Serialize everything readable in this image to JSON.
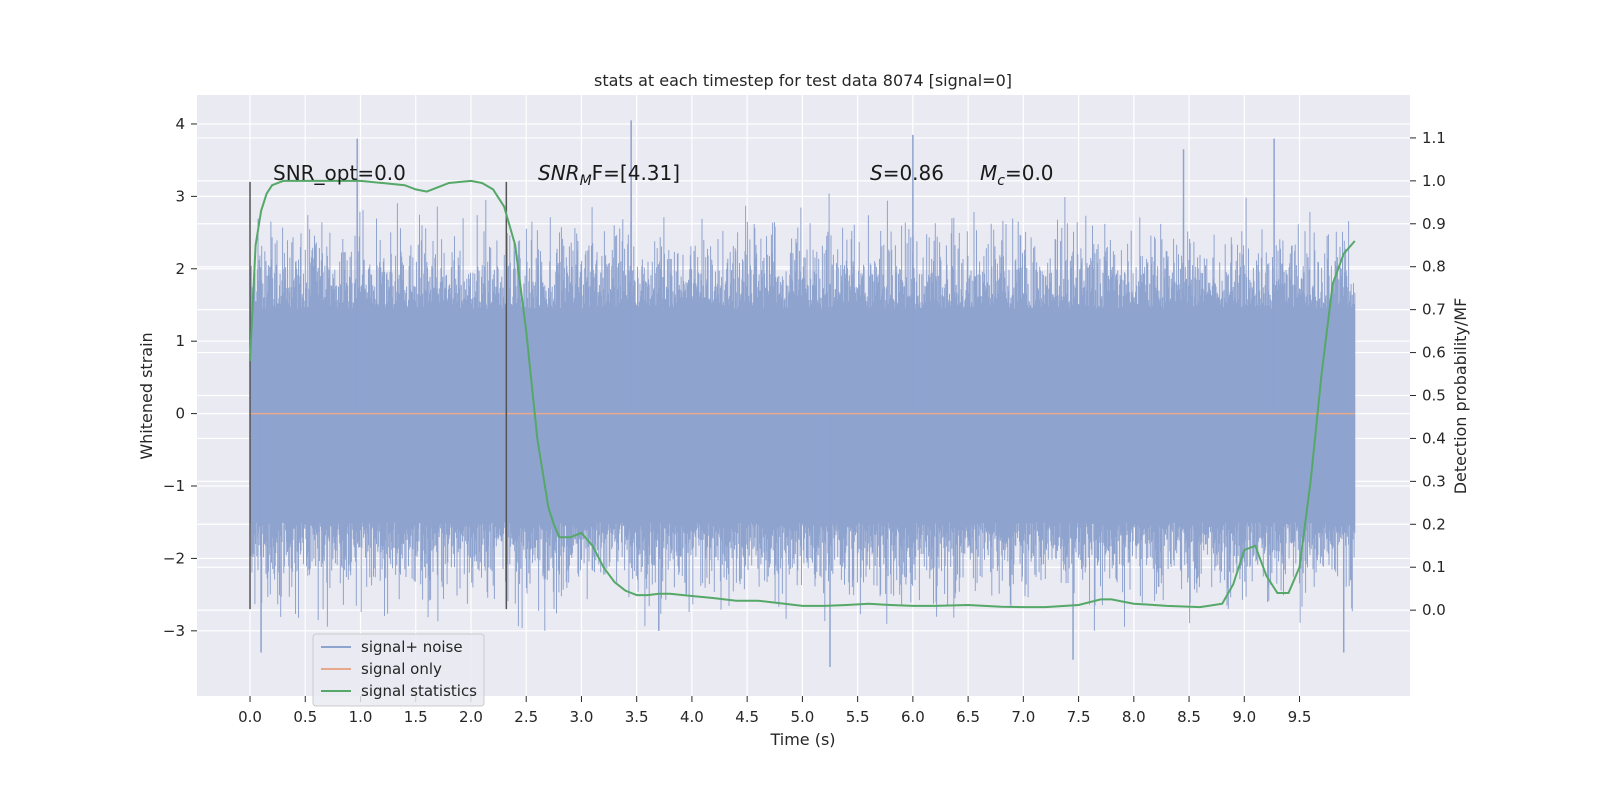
{
  "chart_data": {
    "type": "line",
    "title": "stats at each timestep for test data 8074 [signal=0]",
    "xlabel": "Time (s)",
    "ylabel": "Whitened strain",
    "y2label": "Detection probability/MF",
    "xlim": [
      -0.48,
      10.5
    ],
    "ylim": [
      -3.9,
      4.4
    ],
    "y2lim": [
      -0.2,
      1.2
    ],
    "xticks": [
      "0.0",
      "0.5",
      "1.0",
      "1.5",
      "2.0",
      "2.5",
      "3.0",
      "3.5",
      "4.0",
      "4.5",
      "5.0",
      "5.5",
      "6.0",
      "6.5",
      "7.0",
      "7.5",
      "8.0",
      "8.5",
      "9.0",
      "9.5"
    ],
    "xtick_values": [
      0.0,
      0.5,
      1.0,
      1.5,
      2.0,
      2.5,
      3.0,
      3.5,
      4.0,
      4.5,
      5.0,
      5.5,
      6.0,
      6.5,
      7.0,
      7.5,
      8.0,
      8.5,
      9.0,
      9.5
    ],
    "yticks": [
      "4",
      "3",
      "2",
      "1",
      "0",
      "−1",
      "−2",
      "−3"
    ],
    "ytick_values": [
      4,
      3,
      2,
      1,
      0,
      -1,
      -2,
      -3
    ],
    "y2ticks": [
      "1.1",
      "1.0",
      "0.9",
      "0.8",
      "0.7",
      "0.6",
      "0.5",
      "0.4",
      "0.3",
      "0.2",
      "0.1",
      "0.0"
    ],
    "y2tick_values": [
      1.1,
      1.0,
      0.9,
      0.8,
      0.7,
      0.6,
      0.5,
      0.4,
      0.3,
      0.2,
      0.1,
      0.0
    ],
    "grid": true,
    "legend_position": "lower-left",
    "legend": [
      {
        "label": "signal+ noise",
        "color": "#8fa3cf"
      },
      {
        "label": "signal only",
        "color": "#e8a88c"
      },
      {
        "label": "signal statistics",
        "color": "#55a868"
      }
    ],
    "annotations": {
      "snr_opt": "SNR_opt=0.0",
      "snr_mf_base": "SNR",
      "snr_mf_sub": "M",
      "snr_mf_rest": "F=[4.31]",
      "s_var": "S",
      "s_value": "=0.86",
      "mc_var": "M",
      "mc_sub": "c",
      "mc_value": "=0.0"
    },
    "vertical_markers": [
      {
        "x": 0.0,
        "ymin": -2.7,
        "ymax": 3.2
      },
      {
        "x": 2.32,
        "ymin": -2.7,
        "ymax": 3.2
      }
    ],
    "noise": {
      "x_start": 0.0,
      "x_end": 10.0,
      "band": [
        -1.5,
        1.45
      ],
      "max_peak": 4.05,
      "min_trough": -3.5,
      "color": "#8fa3cf"
    },
    "signal_only": {
      "value": 0.0,
      "x_start": 0.0,
      "x_end": 10.0,
      "color": "#e8a88c"
    },
    "statistics": {
      "color": "#55a868",
      "x": [
        0.0,
        0.05,
        0.1,
        0.15,
        0.2,
        0.3,
        0.5,
        0.8,
        1.0,
        1.2,
        1.4,
        1.5,
        1.6,
        1.7,
        1.8,
        2.0,
        2.1,
        2.2,
        2.3,
        2.4,
        2.5,
        2.6,
        2.7,
        2.75,
        2.8,
        2.9,
        3.0,
        3.1,
        3.2,
        3.3,
        3.4,
        3.5,
        3.6,
        3.7,
        3.8,
        4.0,
        4.2,
        4.4,
        4.6,
        4.8,
        5.0,
        5.2,
        5.4,
        5.6,
        5.8,
        6.0,
        6.2,
        6.5,
        6.8,
        7.0,
        7.2,
        7.5,
        7.7,
        7.8,
        7.9,
        8.0,
        8.3,
        8.6,
        8.8,
        8.9,
        9.0,
        9.1,
        9.2,
        9.3,
        9.4,
        9.5,
        9.6,
        9.7,
        9.8,
        9.9,
        10.0
      ],
      "y": [
        0.58,
        0.85,
        0.93,
        0.97,
        0.99,
        1.0,
        1.0,
        1.0,
        1.0,
        0.995,
        0.99,
        0.98,
        0.975,
        0.985,
        0.995,
        1.0,
        0.995,
        0.98,
        0.94,
        0.85,
        0.65,
        0.4,
        0.24,
        0.2,
        0.17,
        0.17,
        0.18,
        0.15,
        0.1,
        0.065,
        0.045,
        0.035,
        0.035,
        0.038,
        0.038,
        0.033,
        0.028,
        0.022,
        0.022,
        0.016,
        0.01,
        0.01,
        0.012,
        0.015,
        0.012,
        0.01,
        0.01,
        0.012,
        0.008,
        0.007,
        0.007,
        0.012,
        0.025,
        0.025,
        0.02,
        0.015,
        0.01,
        0.007,
        0.015,
        0.06,
        0.14,
        0.15,
        0.08,
        0.04,
        0.04,
        0.1,
        0.3,
        0.55,
        0.76,
        0.83,
        0.86
      ]
    }
  }
}
